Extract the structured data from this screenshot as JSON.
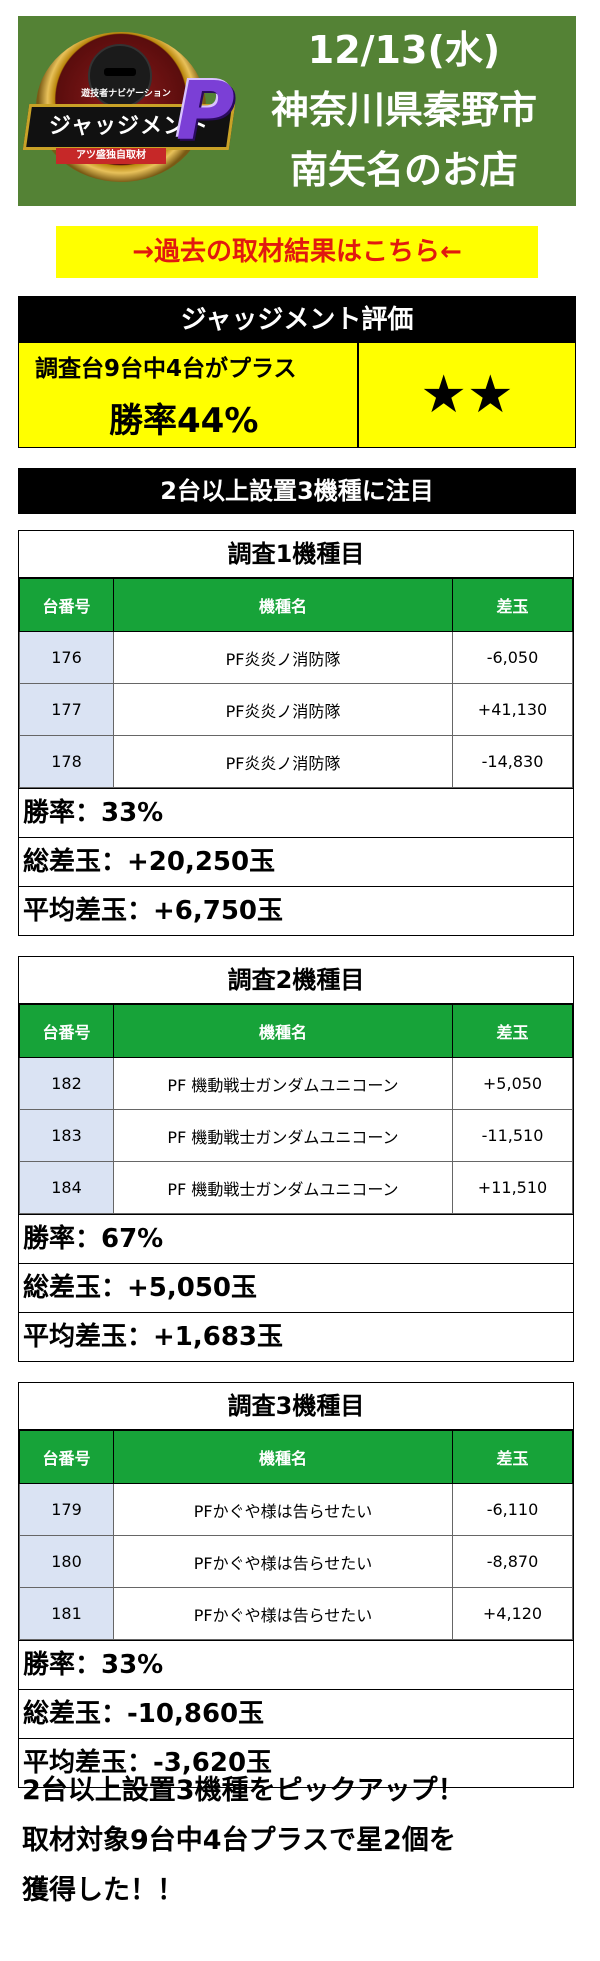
{
  "header": {
    "date": "12/13(水)",
    "location": "神奈川県秦野市",
    "store": "南矢名のお店",
    "logo": {
      "top_label": "遊技者ナビゲーション",
      "name": "ジャッジメント",
      "sub_label": "アツ盛独自取材",
      "mark": "P"
    }
  },
  "past_link": "→過去の取材結果はこちら←",
  "evaluation": {
    "title": "ジャッジメント評価",
    "plus_line": "調査台9台中4台がプラス",
    "win_rate": "勝率44%",
    "stars": "★★"
  },
  "notice": "2台以上設置3機種に注目",
  "table_headers": [
    "台番号",
    "機種名",
    "差玉"
  ],
  "machines": [
    {
      "title": "調査1機種目",
      "rows": [
        {
          "no": "176",
          "name": "PF炎炎ノ消防隊",
          "diff": "-6,050"
        },
        {
          "no": "177",
          "name": "PF炎炎ノ消防隊",
          "diff": "+41,130"
        },
        {
          "no": "178",
          "name": "PF炎炎ノ消防隊",
          "diff": "-14,830"
        }
      ],
      "win_rate": "勝率：33%",
      "total": "総差玉：+20,250玉",
      "average": "平均差玉：+6,750玉"
    },
    {
      "title": "調査2機種目",
      "rows": [
        {
          "no": "182",
          "name": "PF 機動戦士ガンダムユニコーン",
          "diff": "+5,050"
        },
        {
          "no": "183",
          "name": "PF 機動戦士ガンダムユニコーン",
          "diff": "-11,510"
        },
        {
          "no": "184",
          "name": "PF 機動戦士ガンダムユニコーン",
          "diff": "+11,510"
        }
      ],
      "win_rate": "勝率：67%",
      "total": "総差玉：+5,050玉",
      "average": "平均差玉：+1,683玉"
    },
    {
      "title": "調査3機種目",
      "rows": [
        {
          "no": "179",
          "name": "PFかぐや様は告らせたい",
          "diff": "-6,110"
        },
        {
          "no": "180",
          "name": "PFかぐや様は告らせたい",
          "diff": "-8,870"
        },
        {
          "no": "181",
          "name": "PFかぐや様は告らせたい",
          "diff": "+4,120"
        }
      ],
      "win_rate": "勝率：33%",
      "total": "総差玉：-10,860玉",
      "average": "平均差玉：-3,620玉"
    }
  ],
  "summary": [
    "2台以上設置3機種をピックアップ！",
    "取材対象9台中4台プラスで星2個を",
    "獲得した！！"
  ]
}
